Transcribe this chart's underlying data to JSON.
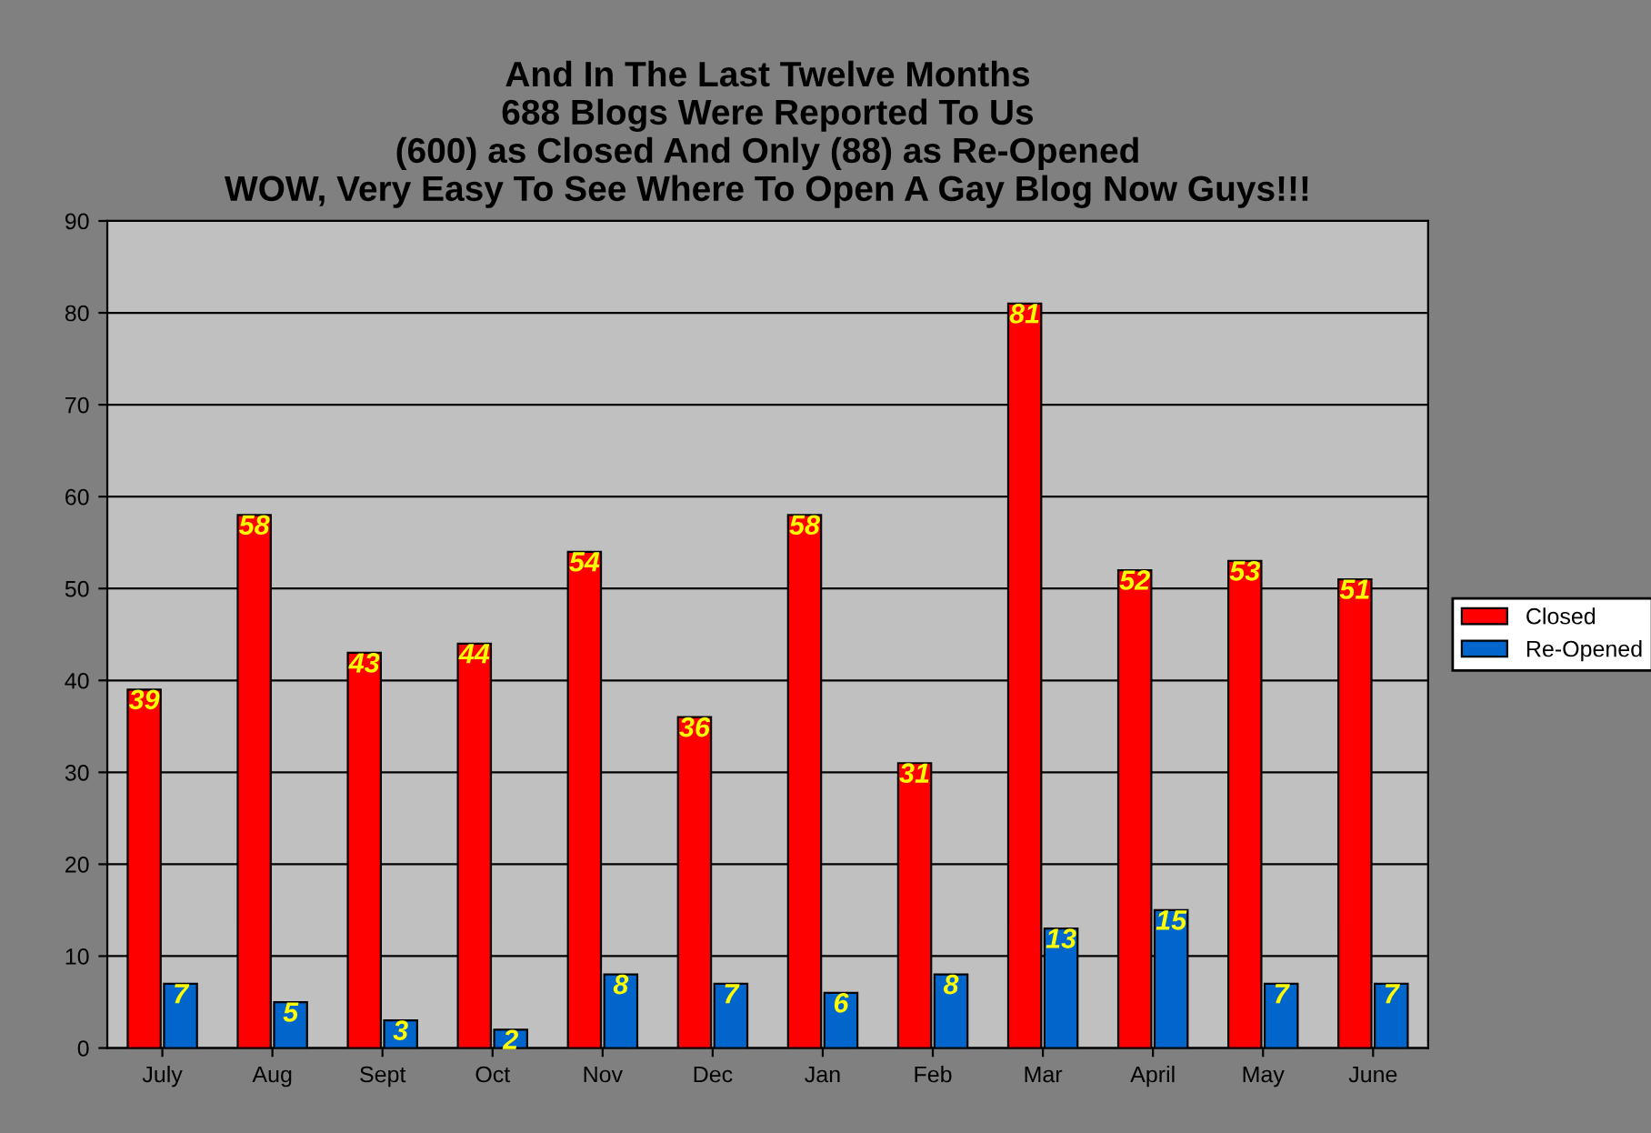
{
  "chart_data": {
    "type": "bar",
    "title": "And In The Last Twelve Months\n688 Blogs Were Reported To Us\n(600) as Closed And Only (88) as Re-Opened\nWOW, Very Easy To See Where To Open A Gay Blog Now Guys!!!",
    "categories": [
      "July",
      "Aug",
      "Sept",
      "Oct",
      "Nov",
      "Dec",
      "Jan",
      "Feb",
      "Mar",
      "April",
      "May",
      "June"
    ],
    "series": [
      {
        "name": "Closed",
        "color": "#ff0000",
        "values": [
          39,
          58,
          43,
          44,
          54,
          36,
          58,
          31,
          81,
          52,
          53,
          51
        ]
      },
      {
        "name": "Re-Opened",
        "color": "#0066cc",
        "values": [
          7,
          5,
          3,
          2,
          8,
          7,
          6,
          8,
          13,
          15,
          7,
          7
        ]
      }
    ],
    "ylim": [
      0,
      90
    ],
    "yticks": [
      0,
      10,
      20,
      30,
      40,
      50,
      60,
      70,
      80,
      90
    ],
    "grid": "y",
    "legend": "right",
    "data_labels": true
  }
}
